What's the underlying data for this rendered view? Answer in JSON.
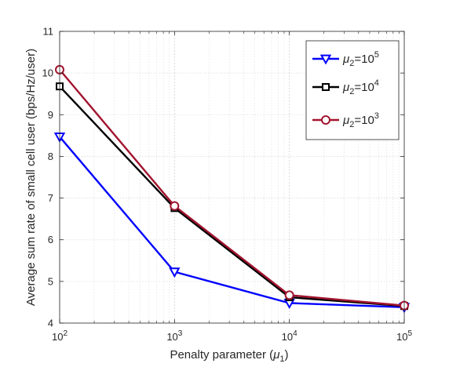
{
  "chart_data": {
    "type": "line",
    "xlabel": "Penalty parameter (μ1)",
    "xlabel_parts": {
      "text": "Penalty parameter (",
      "symbol": "μ",
      "sub": "1",
      "close": ")"
    },
    "ylabel": "Average sum rate of small cell user (bps/Hz/user)",
    "x_scale": "log",
    "x": [
      100,
      1000,
      10000,
      100000
    ],
    "xlim": [
      100,
      100000
    ],
    "ylim": [
      4,
      11
    ],
    "x_ticks": [
      {
        "value": 100,
        "base": "10",
        "exp": "2"
      },
      {
        "value": 1000,
        "base": "10",
        "exp": "3"
      },
      {
        "value": 10000,
        "base": "10",
        "exp": "4"
      },
      {
        "value": 100000,
        "base": "10",
        "exp": "5"
      }
    ],
    "y_ticks": [
      {
        "value": 4,
        "label": "4"
      },
      {
        "value": 5,
        "label": "5"
      },
      {
        "value": 6,
        "label": "6"
      },
      {
        "value": 7,
        "label": "7"
      },
      {
        "value": 8,
        "label": "8"
      },
      {
        "value": 9,
        "label": "9"
      },
      {
        "value": 10,
        "label": "10"
      },
      {
        "value": 11,
        "label": "11"
      }
    ],
    "grid": true,
    "legend_position": "top-right",
    "series": [
      {
        "name": "μ2=10^5",
        "label_parts": {
          "symbol": "μ",
          "sub": "2",
          "eq": "=10",
          "sup": "5"
        },
        "values": [
          8.47,
          5.23,
          4.48,
          4.38
        ],
        "color": "#0000ff",
        "marker": "triangle-down"
      },
      {
        "name": "μ2=10^4",
        "label_parts": {
          "symbol": "μ",
          "sub": "2",
          "eq": "=10",
          "sup": "4"
        },
        "values": [
          9.68,
          6.76,
          4.62,
          4.41
        ],
        "color": "#000000",
        "marker": "square"
      },
      {
        "name": "μ2=10^3",
        "label_parts": {
          "symbol": "μ",
          "sub": "2",
          "eq": "=10",
          "sup": "3"
        },
        "values": [
          10.08,
          6.81,
          4.67,
          4.42
        ],
        "color": "#a2142f",
        "marker": "circle"
      }
    ]
  }
}
